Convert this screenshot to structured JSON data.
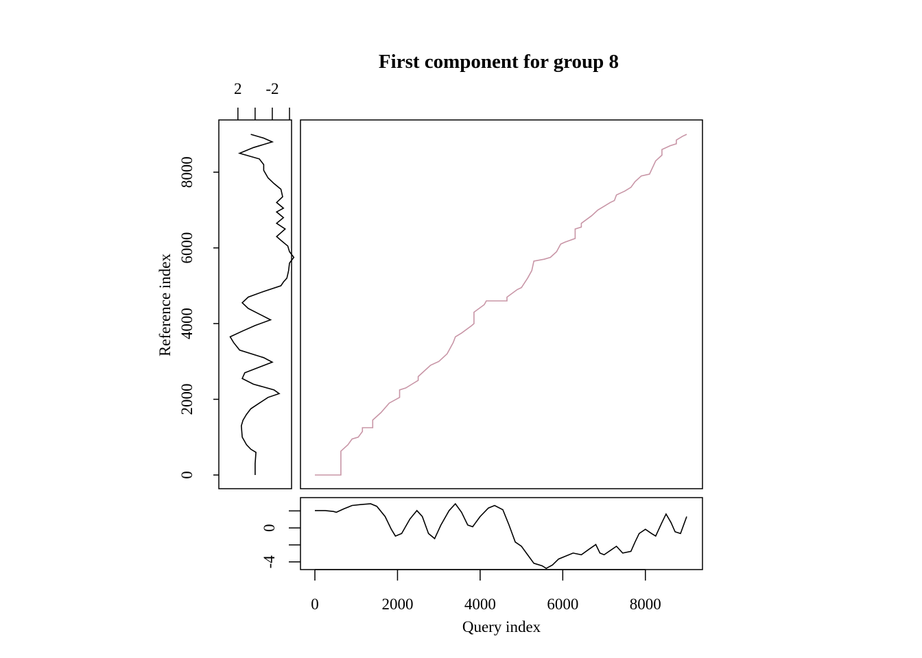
{
  "chart_data": {
    "type": "line",
    "title": "First component for group 8",
    "xlabel": "Query index",
    "ylabel": "Reference index",
    "colors": {
      "alignment": "#c895a6",
      "series": "#000000"
    },
    "main": {
      "xlim": [
        0,
        9000
      ],
      "ylim": [
        0,
        9000
      ],
      "xticks": [
        "0",
        "2000",
        "4000",
        "6000",
        "8000"
      ],
      "yticks": [
        "0",
        "2000",
        "4000",
        "6000",
        "8000"
      ],
      "alignment_path": [
        [
          0,
          0
        ],
        [
          630,
          0
        ],
        [
          630,
          630
        ],
        [
          700,
          700
        ],
        [
          800,
          800
        ],
        [
          900,
          950
        ],
        [
          1050,
          1000
        ],
        [
          1150,
          1150
        ],
        [
          1150,
          1250
        ],
        [
          1400,
          1250
        ],
        [
          1400,
          1450
        ],
        [
          1600,
          1650
        ],
        [
          1800,
          1900
        ],
        [
          2050,
          2050
        ],
        [
          2050,
          2250
        ],
        [
          2200,
          2300
        ],
        [
          2350,
          2400
        ],
        [
          2500,
          2500
        ],
        [
          2500,
          2600
        ],
        [
          2600,
          2700
        ],
        [
          2800,
          2900
        ],
        [
          3000,
          3000
        ],
        [
          3200,
          3200
        ],
        [
          3350,
          3500
        ],
        [
          3400,
          3650
        ],
        [
          3550,
          3750
        ],
        [
          3800,
          3950
        ],
        [
          3850,
          4000
        ],
        [
          3850,
          4300
        ],
        [
          4100,
          4500
        ],
        [
          4150,
          4600
        ],
        [
          4650,
          4600
        ],
        [
          4650,
          4700
        ],
        [
          4900,
          4900
        ],
        [
          5000,
          4950
        ],
        [
          5150,
          5200
        ],
        [
          5250,
          5400
        ],
        [
          5300,
          5650
        ],
        [
          5550,
          5700
        ],
        [
          5700,
          5750
        ],
        [
          5850,
          5900
        ],
        [
          5950,
          6100
        ],
        [
          6050,
          6150
        ],
        [
          6300,
          6250
        ],
        [
          6300,
          6500
        ],
        [
          6450,
          6550
        ],
        [
          6450,
          6650
        ],
        [
          6700,
          6850
        ],
        [
          6850,
          7000
        ],
        [
          7000,
          7100
        ],
        [
          7150,
          7200
        ],
        [
          7250,
          7250
        ],
        [
          7300,
          7400
        ],
        [
          7500,
          7500
        ],
        [
          7650,
          7600
        ],
        [
          7750,
          7750
        ],
        [
          7900,
          7900
        ],
        [
          8100,
          7950
        ],
        [
          8250,
          8300
        ],
        [
          8400,
          8450
        ],
        [
          8400,
          8600
        ],
        [
          8600,
          8700
        ],
        [
          8750,
          8750
        ],
        [
          8750,
          8850
        ],
        [
          8900,
          8950
        ],
        [
          9000,
          9000
        ]
      ]
    },
    "query_series": {
      "ylim": [
        -4.5,
        3
      ],
      "yticks": [
        "0",
        "-4"
      ],
      "points": [
        [
          0,
          2.2
        ],
        [
          250,
          2.2
        ],
        [
          450,
          2.1
        ],
        [
          520,
          2.0
        ],
        [
          700,
          2.4
        ],
        [
          900,
          2.8
        ],
        [
          1100,
          2.9
        ],
        [
          1350,
          3.0
        ],
        [
          1500,
          2.7
        ],
        [
          1700,
          1.5
        ],
        [
          1850,
          0.0
        ],
        [
          1950,
          -0.8
        ],
        [
          2100,
          -0.5
        ],
        [
          2300,
          1.2
        ],
        [
          2470,
          2.2
        ],
        [
          2600,
          1.5
        ],
        [
          2750,
          -0.5
        ],
        [
          2900,
          -1.1
        ],
        [
          3050,
          0.5
        ],
        [
          3250,
          2.2
        ],
        [
          3400,
          3.0
        ],
        [
          3550,
          2.0
        ],
        [
          3700,
          0.5
        ],
        [
          3820,
          0.3
        ],
        [
          4000,
          1.5
        ],
        [
          4200,
          2.5
        ],
        [
          4350,
          2.8
        ],
        [
          4550,
          2.3
        ],
        [
          4700,
          0.5
        ],
        [
          4850,
          -1.5
        ],
        [
          5000,
          -2.0
        ],
        [
          5150,
          -3.0
        ],
        [
          5300,
          -4.0
        ],
        [
          5500,
          -4.3
        ],
        [
          5600,
          -4.6
        ],
        [
          5750,
          -4.2
        ],
        [
          5900,
          -3.5
        ],
        [
          6050,
          -3.2
        ],
        [
          6250,
          -2.8
        ],
        [
          6450,
          -3.0
        ],
        [
          6650,
          -2.3
        ],
        [
          6800,
          -1.8
        ],
        [
          6900,
          -2.8
        ],
        [
          7000,
          -3.0
        ],
        [
          7150,
          -2.5
        ],
        [
          7300,
          -2.0
        ],
        [
          7450,
          -2.8
        ],
        [
          7650,
          -2.6
        ],
        [
          7750,
          -1.5
        ],
        [
          7850,
          -0.5
        ],
        [
          8000,
          0.0
        ],
        [
          8150,
          -0.5
        ],
        [
          8250,
          -0.8
        ],
        [
          8400,
          0.8
        ],
        [
          8500,
          1.8
        ],
        [
          8620,
          0.8
        ],
        [
          8720,
          -0.3
        ],
        [
          8850,
          -0.5
        ],
        [
          9000,
          1.5
        ]
      ]
    },
    "reference_series": {
      "xlim": [
        3.5,
        -4.0
      ],
      "xticks": [
        "2",
        "-2"
      ],
      "points": [
        [
          0,
          0
        ],
        [
          300,
          0
        ],
        [
          600,
          -0.1
        ],
        [
          680,
          0.5
        ],
        [
          800,
          1.0
        ],
        [
          1000,
          1.5
        ],
        [
          1300,
          1.6
        ],
        [
          1450,
          1.4
        ],
        [
          1600,
          1.0
        ],
        [
          1750,
          0.5
        ],
        [
          1900,
          -0.5
        ],
        [
          2050,
          -1.5
        ],
        [
          2150,
          -2.8
        ],
        [
          2250,
          -2.2
        ],
        [
          2400,
          0.2
        ],
        [
          2550,
          1.5
        ],
        [
          2700,
          1.2
        ],
        [
          2850,
          -0.5
        ],
        [
          2980,
          -2.0
        ],
        [
          3100,
          -1.0
        ],
        [
          3300,
          1.8
        ],
        [
          3500,
          2.5
        ],
        [
          3650,
          2.9
        ],
        [
          3800,
          1.5
        ],
        [
          3950,
          0.0
        ],
        [
          4100,
          -1.8
        ],
        [
          4250,
          -0.5
        ],
        [
          4400,
          0.8
        ],
        [
          4550,
          1.5
        ],
        [
          4700,
          0.8
        ],
        [
          4850,
          -1.0
        ],
        [
          5000,
          -3.0
        ],
        [
          5100,
          -3.3
        ],
        [
          5200,
          -3.7
        ],
        [
          5400,
          -3.9
        ],
        [
          5600,
          -4.0
        ],
        [
          5750,
          -4.5
        ],
        [
          5900,
          -4.0
        ],
        [
          6050,
          -3.8
        ],
        [
          6200,
          -3.0
        ],
        [
          6300,
          -2.5
        ],
        [
          6500,
          -3.5
        ],
        [
          6650,
          -2.5
        ],
        [
          6800,
          -3.3
        ],
        [
          6950,
          -2.5
        ],
        [
          7050,
          -3.3
        ],
        [
          7200,
          -2.5
        ],
        [
          7350,
          -3.2
        ],
        [
          7550,
          -3.0
        ],
        [
          7700,
          -2.2
        ],
        [
          7850,
          -1.5
        ],
        [
          8050,
          -1.0
        ],
        [
          8200,
          -1.0
        ],
        [
          8350,
          -0.5
        ],
        [
          8500,
          1.8
        ],
        [
          8650,
          0.2
        ],
        [
          8800,
          -2.0
        ],
        [
          8900,
          -1.0
        ],
        [
          9000,
          0.5
        ]
      ]
    }
  }
}
